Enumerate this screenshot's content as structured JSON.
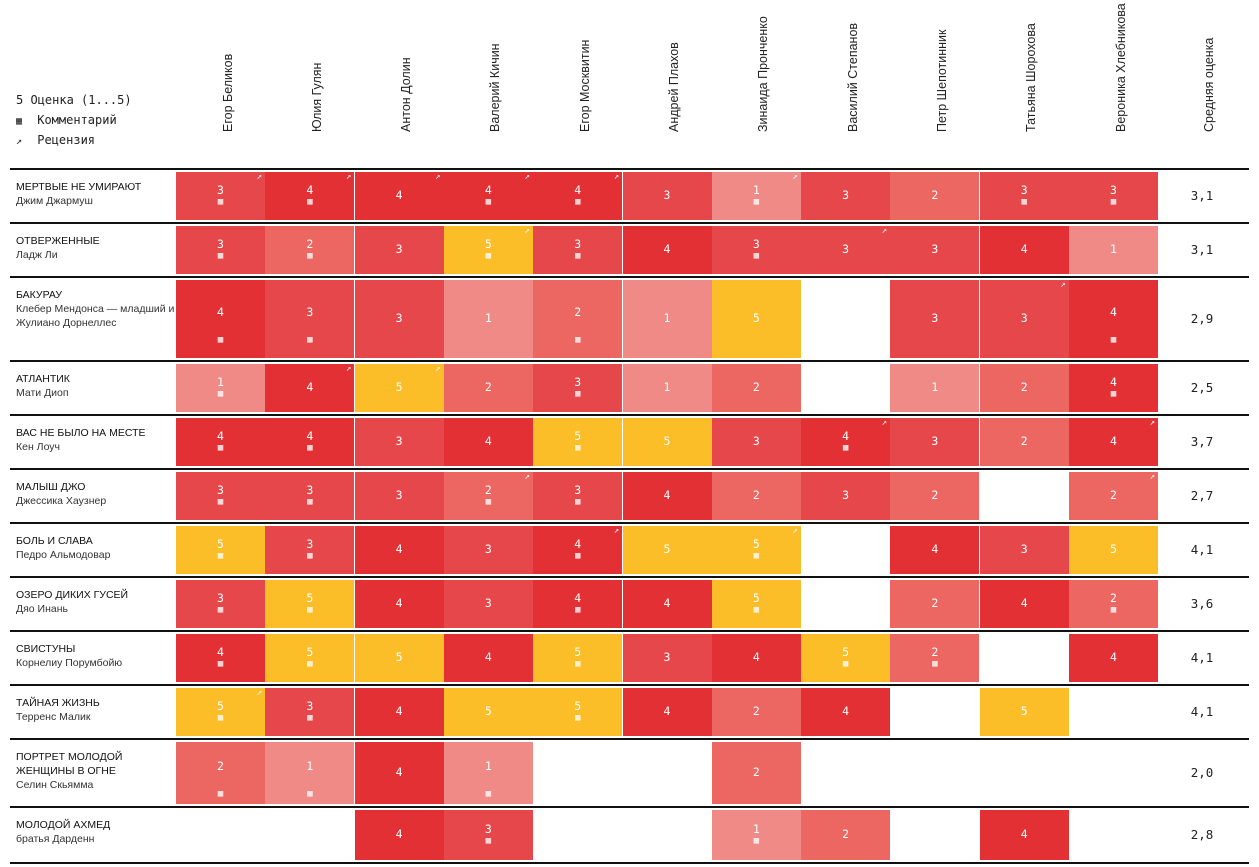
{
  "legend": {
    "score_label": "5 Оценка (1...5)",
    "comment_label": "Комментарий",
    "review_label": "Рецензия",
    "comment_icon": "comment-icon",
    "review_icon": "external-link-icon"
  },
  "colors": {
    "1": "#f08a87",
    "2": "#ec6662",
    "3": "#e5474a",
    "4": "#e33034",
    "5": "#fbbd28"
  },
  "chart_data": {
    "type": "table",
    "critics": [
      "Егор Беликов",
      "Юлия Гулян",
      "Антон Долин",
      "Валерий Кичин",
      "Егор Москвитин",
      "Андрей Плахов",
      "Зинаида Пронченко",
      "Василий Степанов",
      "Петр Шепотинник",
      "Татьяна Шорохова",
      "Вероника Хлебникова"
    ],
    "avg_header": "Средняя оценка",
    "films": [
      {
        "title": "МЕРТВЫЕ НЕ УМИРАЮТ",
        "director": "Джим Джармуш",
        "avg": "3,1",
        "scores": [
          3,
          4,
          4,
          4,
          4,
          3,
          1,
          3,
          2,
          3,
          3
        ],
        "comments": [
          1,
          1,
          0,
          1,
          1,
          0,
          1,
          0,
          0,
          1,
          1
        ],
        "reviews": [
          1,
          1,
          1,
          1,
          1,
          0,
          1,
          0,
          0,
          0,
          0
        ]
      },
      {
        "title": "ОТВЕРЖЕННЫЕ",
        "director": "Ладж Ли",
        "avg": "3,1",
        "scores": [
          3,
          2,
          3,
          5,
          3,
          4,
          3,
          3,
          3,
          4,
          1
        ],
        "comments": [
          1,
          1,
          0,
          1,
          1,
          0,
          1,
          0,
          0,
          0,
          0
        ],
        "reviews": [
          0,
          0,
          0,
          1,
          0,
          0,
          0,
          1,
          0,
          0,
          0
        ]
      },
      {
        "title": "БАКУРАУ",
        "director": "Клебер Мендонса — младший и Жулиано Дорнеллес",
        "avg": "2,9",
        "scores": [
          4,
          3,
          3,
          1,
          2,
          1,
          5,
          null,
          3,
          3,
          4
        ],
        "comments": [
          1,
          1,
          0,
          0,
          1,
          0,
          0,
          0,
          0,
          0,
          1
        ],
        "reviews": [
          0,
          0,
          0,
          0,
          0,
          0,
          0,
          0,
          0,
          1,
          0
        ]
      },
      {
        "title": "АТЛАНТИК",
        "director": "Мати Диоп",
        "avg": "2,5",
        "scores": [
          1,
          4,
          5,
          2,
          3,
          1,
          2,
          null,
          1,
          2,
          4
        ],
        "comments": [
          1,
          0,
          0,
          0,
          1,
          0,
          0,
          0,
          0,
          0,
          1
        ],
        "reviews": [
          0,
          1,
          1,
          0,
          0,
          0,
          0,
          0,
          0,
          0,
          0
        ]
      },
      {
        "title": "ВАС НЕ БЫЛО НА МЕСТЕ",
        "director": "Кен Лоуч",
        "avg": "3,7",
        "scores": [
          4,
          4,
          3,
          4,
          5,
          5,
          3,
          4,
          3,
          2,
          4
        ],
        "comments": [
          1,
          1,
          0,
          0,
          1,
          0,
          0,
          1,
          0,
          0,
          0
        ],
        "reviews": [
          0,
          0,
          0,
          0,
          0,
          0,
          0,
          1,
          0,
          0,
          1
        ]
      },
      {
        "title": "МАЛЫШ ДЖО",
        "director": "Джессика Хаузнер",
        "avg": "2,7",
        "scores": [
          3,
          3,
          3,
          2,
          3,
          4,
          2,
          3,
          2,
          null,
          2
        ],
        "comments": [
          1,
          1,
          0,
          1,
          1,
          0,
          0,
          0,
          0,
          0,
          0
        ],
        "reviews": [
          0,
          0,
          0,
          1,
          0,
          0,
          0,
          0,
          0,
          0,
          1
        ]
      },
      {
        "title": "БОЛЬ И СЛАВА",
        "director": "Педро Альмодовар",
        "avg": "4,1",
        "scores": [
          5,
          3,
          4,
          3,
          4,
          5,
          5,
          null,
          4,
          3,
          5
        ],
        "comments": [
          1,
          1,
          0,
          0,
          1,
          0,
          1,
          0,
          0,
          0,
          0
        ],
        "reviews": [
          0,
          0,
          0,
          0,
          1,
          0,
          1,
          0,
          0,
          0,
          0
        ]
      },
      {
        "title": "ОЗЕРО ДИКИХ ГУСЕЙ",
        "director": "Дяо Инань",
        "avg": "3,6",
        "scores": [
          3,
          5,
          4,
          3,
          4,
          4,
          5,
          null,
          2,
          4,
          2
        ],
        "comments": [
          1,
          1,
          0,
          0,
          1,
          0,
          1,
          0,
          0,
          0,
          1
        ],
        "reviews": [
          0,
          0,
          0,
          0,
          0,
          0,
          0,
          0,
          0,
          0,
          0
        ]
      },
      {
        "title": "СВИСТУНЫ",
        "director": "Корнелиу Порумбойю",
        "avg": "4,1",
        "scores": [
          4,
          5,
          5,
          4,
          5,
          3,
          4,
          5,
          2,
          null,
          4
        ],
        "comments": [
          1,
          1,
          0,
          0,
          1,
          0,
          0,
          1,
          1,
          0,
          0
        ],
        "reviews": [
          0,
          0,
          0,
          0,
          0,
          0,
          0,
          0,
          0,
          0,
          0
        ]
      },
      {
        "title": "ТАЙНАЯ ЖИЗНЬ",
        "director": "Терренс Малик",
        "avg": "4,1",
        "scores": [
          5,
          3,
          4,
          5,
          5,
          4,
          2,
          4,
          null,
          5,
          null
        ],
        "comments": [
          1,
          1,
          0,
          0,
          1,
          0,
          0,
          0,
          0,
          0,
          0
        ],
        "reviews": [
          1,
          0,
          0,
          0,
          0,
          0,
          0,
          0,
          0,
          0,
          0
        ]
      },
      {
        "title": "ПОРТРЕТ МОЛОДОЙ ЖЕНЩИНЫ В ОГНЕ",
        "director": "Селин Скьямма",
        "avg": "2,0",
        "scores": [
          2,
          1,
          4,
          1,
          null,
          null,
          2,
          null,
          null,
          null,
          null
        ],
        "comments": [
          1,
          1,
          0,
          1,
          0,
          0,
          0,
          0,
          0,
          0,
          0
        ],
        "reviews": [
          0,
          0,
          0,
          0,
          0,
          0,
          0,
          0,
          0,
          0,
          0
        ]
      },
      {
        "title": "МОЛОДОЙ АХМЕД",
        "director": "братья Дарденн",
        "avg": "2,8",
        "scores": [
          null,
          null,
          4,
          3,
          null,
          null,
          1,
          2,
          null,
          4,
          null
        ],
        "comments": [
          0,
          0,
          0,
          1,
          0,
          0,
          1,
          0,
          0,
          0,
          0
        ],
        "reviews": [
          0,
          0,
          0,
          0,
          0,
          0,
          0,
          0,
          0,
          0,
          0
        ]
      }
    ]
  }
}
